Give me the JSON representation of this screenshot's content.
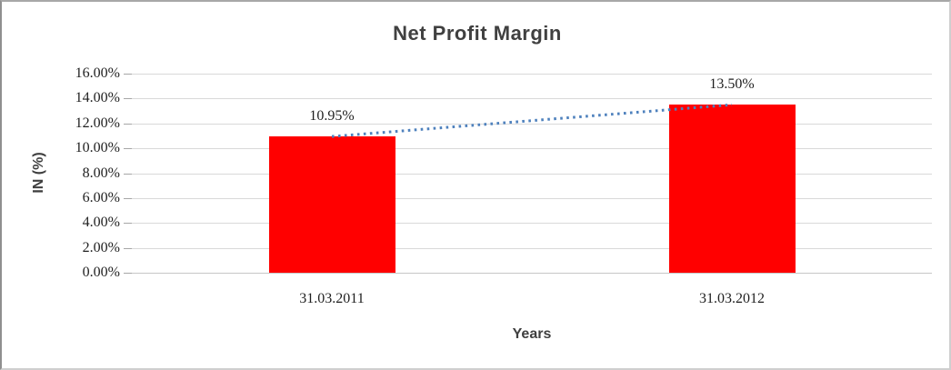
{
  "chart_data": {
    "type": "bar",
    "title": "Net Profit Margin",
    "xlabel": "Years",
    "ylabel": "IN (%)",
    "categories": [
      "31.03.2011",
      "31.03.2012"
    ],
    "values": [
      10.95,
      13.5
    ],
    "data_labels": [
      "10.95%",
      "13.50%"
    ],
    "y_ticks_top_to_bottom": [
      "16.00%",
      "14.00%",
      "12.00%",
      "10.00%",
      "8.00%",
      "6.00%",
      "4.00%",
      "2.00%",
      "0.00%"
    ],
    "ylim": [
      0,
      16
    ],
    "y_step": 2,
    "grid": true,
    "legend": "none",
    "bar_color": "#FF0000",
    "gridline_color": "#D9D9D9",
    "title_color": "#404040",
    "trendline": {
      "type": "linear",
      "style": "dotted",
      "color": "#4E81BD",
      "from_value": 10.95,
      "to_value": 13.5
    }
  }
}
